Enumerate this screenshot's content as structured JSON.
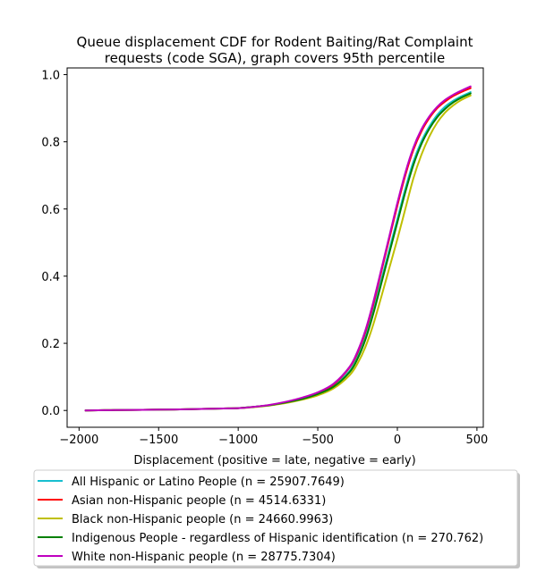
{
  "chart_data": {
    "type": "line",
    "title_lines": [
      "Queue displacement CDF for Rodent Baiting/Rat Complaint",
      "requests (code SGA), graph covers 95th percentile"
    ],
    "xlabel": "Displacement (positive = late, negative = early)",
    "ylabel": "",
    "xlim": [
      -2075,
      540
    ],
    "ylim": [
      -0.05,
      1.02
    ],
    "xticks": [
      -2000,
      -1500,
      -1000,
      -500,
      0,
      500
    ],
    "xtick_labels": [
      "−2000",
      "−1500",
      "−1000",
      "−500",
      "0",
      "500"
    ],
    "yticks": [
      0.0,
      0.2,
      0.4,
      0.6,
      0.8,
      1.0
    ],
    "ytick_labels": [
      "0.0",
      "0.2",
      "0.4",
      "0.6",
      "0.8",
      "1.0"
    ],
    "legend_position": "below",
    "x": [
      -1960,
      -1800,
      -1600,
      -1400,
      -1200,
      -1000,
      -900,
      -800,
      -700,
      -600,
      -500,
      -400,
      -300,
      -250,
      -200,
      -150,
      -100,
      -50,
      0,
      50,
      100,
      150,
      200,
      250,
      300,
      350,
      400,
      460
    ],
    "series": [
      {
        "name": "All Hispanic or Latino People (n = 25907.7649)",
        "color": "#17becf",
        "values": [
          0.0,
          0.001,
          0.002,
          0.003,
          0.005,
          0.007,
          0.011,
          0.016,
          0.024,
          0.035,
          0.05,
          0.073,
          0.118,
          0.16,
          0.22,
          0.3,
          0.39,
          0.48,
          0.57,
          0.66,
          0.74,
          0.8,
          0.845,
          0.88,
          0.905,
          0.922,
          0.935,
          0.948
        ]
      },
      {
        "name": "Asian non-Hispanic people (n = 4514.6331)",
        "color": "#ff0000",
        "values": [
          0.0,
          0.001,
          0.002,
          0.003,
          0.005,
          0.007,
          0.011,
          0.016,
          0.025,
          0.037,
          0.053,
          0.078,
          0.128,
          0.172,
          0.235,
          0.318,
          0.415,
          0.513,
          0.61,
          0.7,
          0.775,
          0.83,
          0.87,
          0.9,
          0.92,
          0.936,
          0.948,
          0.96
        ]
      },
      {
        "name": "Black non-Hispanic people (n = 24660.9963)",
        "color": "#bfbf00",
        "values": [
          0.0,
          0.001,
          0.002,
          0.003,
          0.005,
          0.007,
          0.01,
          0.015,
          0.022,
          0.032,
          0.045,
          0.066,
          0.105,
          0.14,
          0.19,
          0.258,
          0.34,
          0.425,
          0.51,
          0.6,
          0.69,
          0.76,
          0.815,
          0.857,
          0.887,
          0.908,
          0.924,
          0.938
        ]
      },
      {
        "name": "Indigenous People - regardless of Hispanic identification (n = 270.762)",
        "color": "#008000",
        "values": [
          0.0,
          0.001,
          0.002,
          0.003,
          0.005,
          0.007,
          0.011,
          0.016,
          0.024,
          0.034,
          0.049,
          0.071,
          0.114,
          0.154,
          0.212,
          0.29,
          0.38,
          0.47,
          0.56,
          0.65,
          0.73,
          0.792,
          0.838,
          0.873,
          0.898,
          0.917,
          0.931,
          0.944
        ]
      },
      {
        "name": "White non-Hispanic people (n = 28775.7304)",
        "color": "#bf00bf",
        "values": [
          0.0,
          0.001,
          0.002,
          0.003,
          0.005,
          0.007,
          0.011,
          0.017,
          0.026,
          0.038,
          0.054,
          0.08,
          0.13,
          0.176,
          0.24,
          0.325,
          0.422,
          0.52,
          0.618,
          0.708,
          0.782,
          0.836,
          0.875,
          0.904,
          0.925,
          0.94,
          0.952,
          0.965
        ]
      }
    ]
  }
}
